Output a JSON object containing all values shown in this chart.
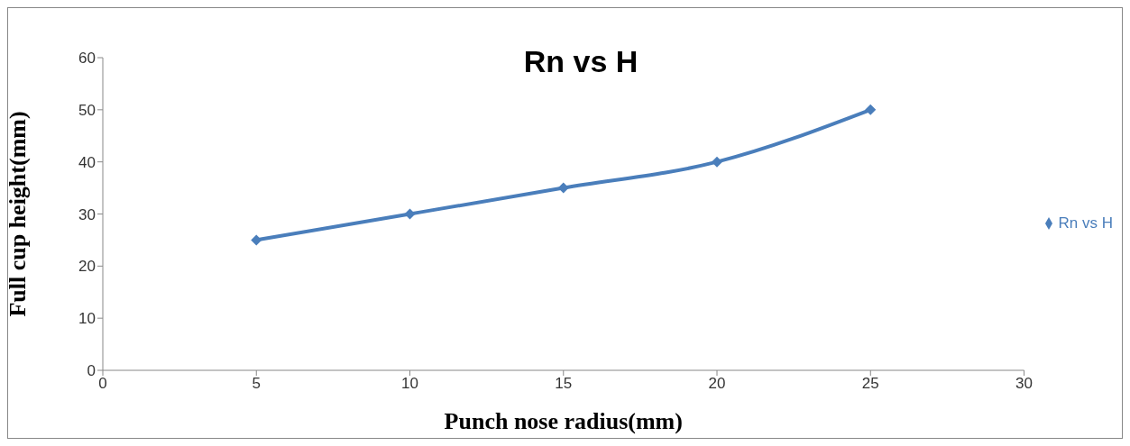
{
  "chart_data": {
    "type": "line",
    "title": "Rn vs H",
    "xlabel": "Punch nose radius(mm)",
    "ylabel": "Full cup height(mm)",
    "x": [
      5,
      10,
      15,
      20,
      25
    ],
    "series": [
      {
        "name": "Rn vs H",
        "color": "#4a7ebb",
        "values": [
          25,
          30,
          35,
          40,
          50
        ]
      }
    ],
    "xlim": [
      0,
      30
    ],
    "xticks": [
      0,
      5,
      10,
      15,
      20,
      25,
      30
    ],
    "ylim": [
      0,
      60
    ],
    "yticks": [
      0,
      10,
      20,
      30,
      40,
      50,
      60
    ],
    "grid": false,
    "legend": "right",
    "marker": "diamond",
    "line_style": "solid"
  }
}
